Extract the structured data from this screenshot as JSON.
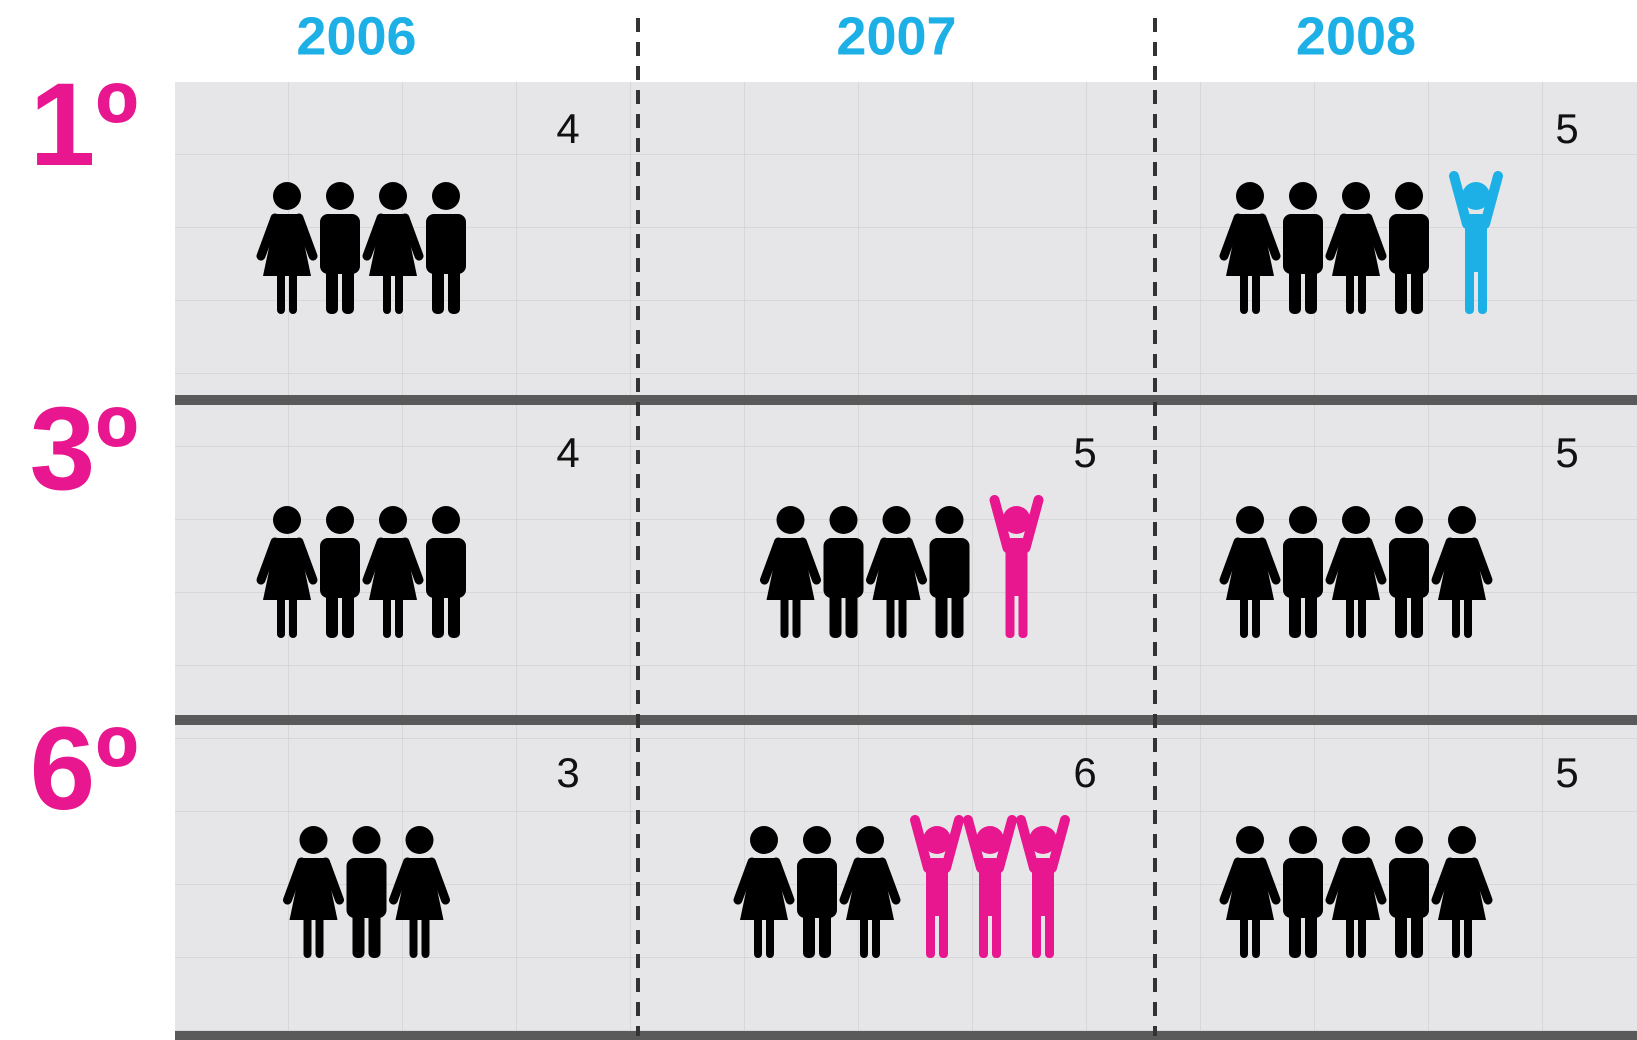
{
  "chart_data": {
    "type": "pictogram",
    "categories": [
      "2006",
      "2007",
      "2008"
    ],
    "series": [
      {
        "name": "1º",
        "values": [
          4,
          null,
          5
        ],
        "highlight": [
          0,
          null,
          1
        ],
        "highlight_color": "#1cb0e6"
      },
      {
        "name": "3º",
        "values": [
          4,
          5,
          5
        ],
        "highlight": [
          0,
          1,
          0
        ],
        "highlight_color": "#e8168f"
      },
      {
        "name": "6º",
        "values": [
          3,
          6,
          5
        ],
        "highlight": [
          0,
          3,
          0
        ],
        "highlight_color": "#e8168f"
      }
    ],
    "color": "#000000",
    "category_color": "#1cb0e6",
    "series_label_color": "#e8168f"
  }
}
